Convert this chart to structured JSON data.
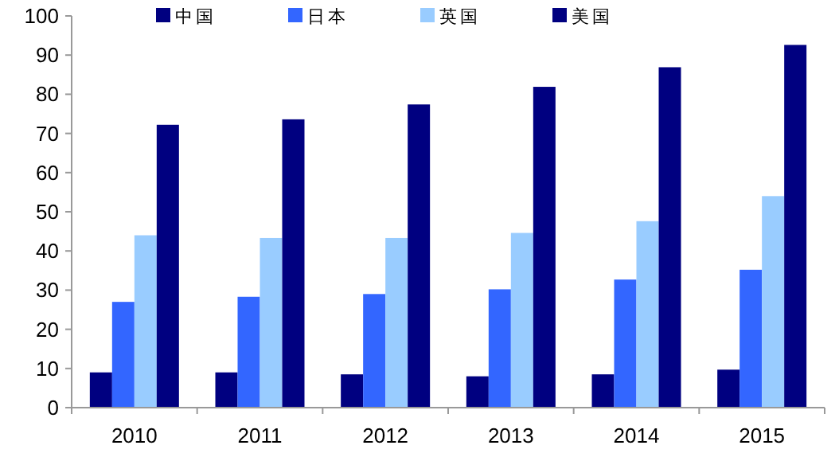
{
  "chart_data": {
    "type": "bar",
    "categories": [
      "2010",
      "2011",
      "2012",
      "2013",
      "2014",
      "2015"
    ],
    "series": [
      {
        "name": "中国",
        "color": "#000080",
        "values": [
          9,
          9,
          8.5,
          8,
          8.5,
          9.7
        ]
      },
      {
        "name": "日本",
        "color": "#3366ff",
        "values": [
          27,
          28.3,
          29,
          30.2,
          32.7,
          35.2
        ]
      },
      {
        "name": "英国",
        "color": "#99ccff",
        "values": [
          44,
          43.3,
          43.3,
          44.6,
          47.6,
          54
        ]
      },
      {
        "name": "美国",
        "color": "#000080",
        "values": [
          72.2,
          73.6,
          77.4,
          81.9,
          86.9,
          92.6
        ]
      }
    ],
    "ylim": [
      0,
      100
    ],
    "yticks": [
      0,
      10,
      20,
      30,
      40,
      50,
      60,
      70,
      80,
      90,
      100
    ],
    "grid": false,
    "legend": "top"
  }
}
